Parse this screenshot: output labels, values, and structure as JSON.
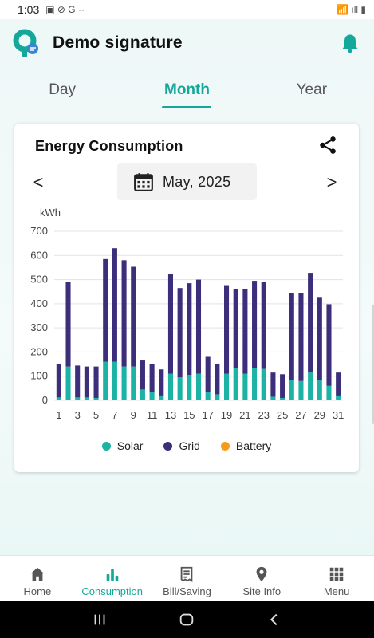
{
  "status_bar": {
    "time": "1:03",
    "app_icons": "▣ ⊘ G ··",
    "right_icons": "📶 ıll ▮"
  },
  "header": {
    "title": "Demo signature"
  },
  "tabs": [
    {
      "label": "Day",
      "active": false
    },
    {
      "label": "Month",
      "active": true
    },
    {
      "label": "Year",
      "active": false
    }
  ],
  "card": {
    "title": "Energy Consumption",
    "date_label": "May, 2025",
    "prev_symbol": "<",
    "next_symbol": ">"
  },
  "chart_data": {
    "type": "bar",
    "stacked": true,
    "ylabel": "kWh",
    "ylim": [
      0,
      700
    ],
    "yticks": [
      0,
      100,
      200,
      300,
      400,
      500,
      600,
      700
    ],
    "grid": true,
    "x": [
      1,
      2,
      3,
      4,
      5,
      6,
      7,
      8,
      9,
      10,
      11,
      12,
      13,
      14,
      15,
      16,
      17,
      18,
      19,
      20,
      21,
      22,
      23,
      24,
      25,
      26,
      27,
      28,
      29,
      30,
      31
    ],
    "xtick_labels": [
      "1",
      "3",
      "5",
      "7",
      "9",
      "11",
      "13",
      "15",
      "17",
      "19",
      "21",
      "23",
      "25",
      "27",
      "29",
      "31"
    ],
    "series": [
      {
        "name": "Solar",
        "color": "#1db3a4",
        "values": [
          12,
          140,
          12,
          12,
          10,
          160,
          160,
          140,
          140,
          45,
          35,
          20,
          110,
          95,
          105,
          110,
          35,
          25,
          110,
          135,
          110,
          135,
          130,
          15,
          10,
          85,
          80,
          115,
          85,
          60,
          20
        ]
      },
      {
        "name": "Grid",
        "color": "#3d2e7c",
        "values": [
          138,
          350,
          132,
          128,
          130,
          425,
          470,
          440,
          413,
          120,
          115,
          108,
          415,
          370,
          380,
          390,
          145,
          127,
          367,
          325,
          350,
          360,
          360,
          100,
          98,
          360,
          365,
          413,
          340,
          338,
          95
        ]
      },
      {
        "name": "Battery",
        "color": "#f59c1a",
        "values": [
          0,
          0,
          0,
          0,
          0,
          0,
          0,
          0,
          0,
          0,
          0,
          0,
          0,
          0,
          0,
          0,
          0,
          0,
          0,
          0,
          0,
          0,
          0,
          0,
          0,
          0,
          0,
          0,
          0,
          0,
          0
        ]
      }
    ],
    "legend_position": "bottom"
  },
  "bottom_nav": [
    {
      "label": "Home",
      "icon": "home-icon",
      "active": false
    },
    {
      "label": "Consumption",
      "icon": "bar-chart-icon",
      "active": true
    },
    {
      "label": "Bill/Saving",
      "icon": "bill-icon",
      "active": false
    },
    {
      "label": "Site Info",
      "icon": "location-pin-icon",
      "active": false
    },
    {
      "label": "Menu",
      "icon": "grid-menu-icon",
      "active": false
    }
  ],
  "colors": {
    "accent": "#14a89b",
    "grid": "#3d2e7c",
    "solar": "#1db3a4",
    "battery": "#f59c1a"
  }
}
